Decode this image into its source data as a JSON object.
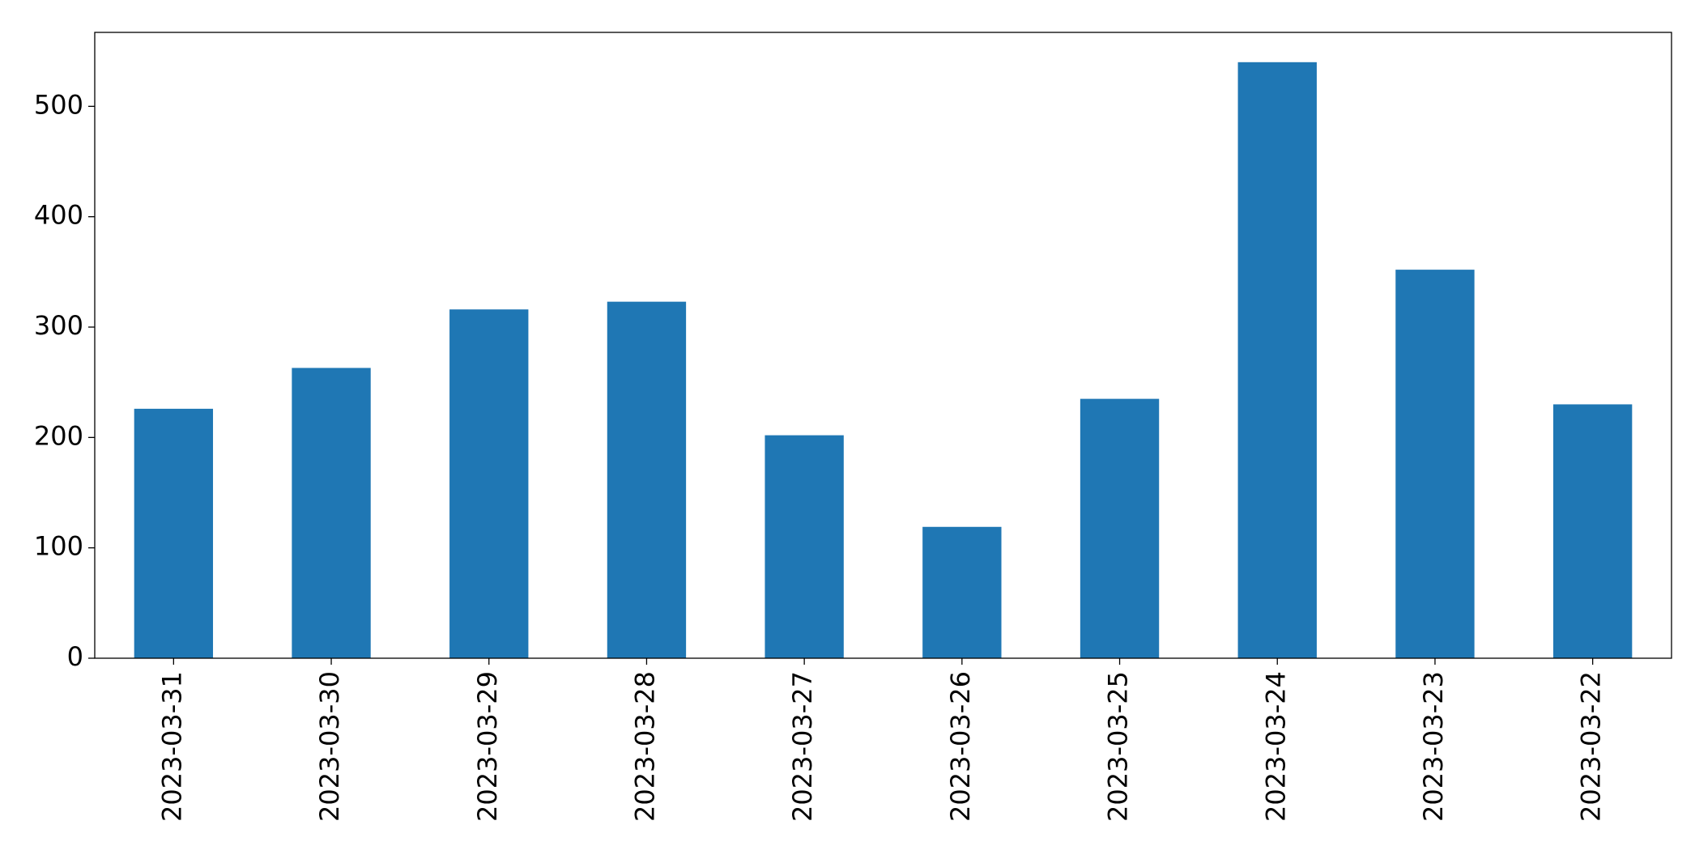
{
  "chart_data": {
    "type": "bar",
    "categories": [
      "2023-03-31",
      "2023-03-30",
      "2023-03-29",
      "2023-03-28",
      "2023-03-27",
      "2023-03-26",
      "2023-03-25",
      "2023-03-24",
      "2023-03-23",
      "2023-03-22"
    ],
    "values": [
      226,
      263,
      316,
      323,
      202,
      119,
      235,
      540,
      352,
      230
    ],
    "color": "#1f77b4",
    "ylim": [
      0,
      567
    ],
    "yticks": [
      0,
      100,
      200,
      300,
      400,
      500
    ],
    "grid": false
  }
}
